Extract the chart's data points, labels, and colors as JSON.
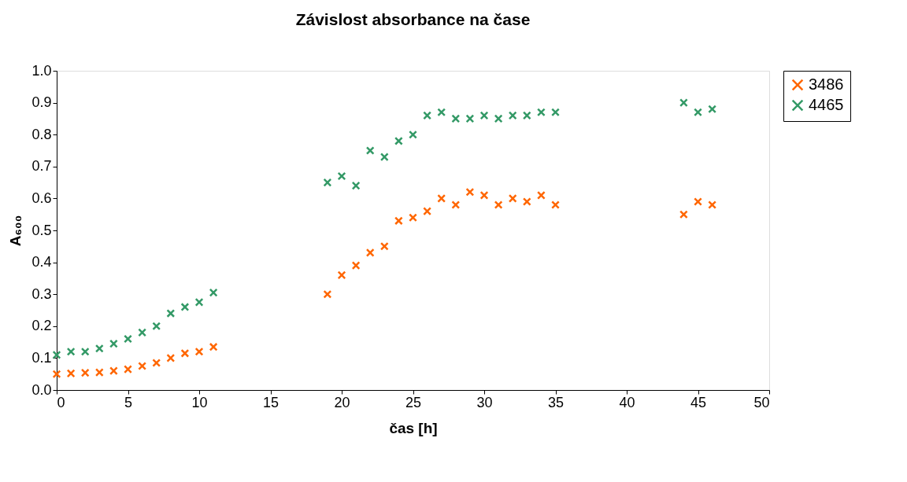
{
  "chart_data": {
    "type": "scatter",
    "title": "Závislost absorbance na čase",
    "xlabel": "čas [h]",
    "ylabel": "A₆₀₀",
    "x": [
      0,
      1,
      2,
      3,
      4,
      5,
      6,
      7,
      8,
      9,
      10,
      11,
      19,
      20,
      21,
      22,
      23,
      24,
      25,
      26,
      27,
      28,
      29,
      30,
      31,
      32,
      33,
      34,
      35,
      44,
      45,
      46
    ],
    "series": [
      {
        "name": "3486",
        "color": "#ff6600",
        "values": [
          0.05,
          0.052,
          0.054,
          0.055,
          0.06,
          0.065,
          0.075,
          0.085,
          0.1,
          0.115,
          0.12,
          0.135,
          0.3,
          0.36,
          0.39,
          0.43,
          0.45,
          0.53,
          0.54,
          0.56,
          0.6,
          0.58,
          0.62,
          0.61,
          0.58,
          0.6,
          0.59,
          0.61,
          0.58,
          0.55,
          0.59,
          0.58
        ]
      },
      {
        "name": "4465",
        "color": "#339966",
        "values": [
          0.11,
          0.12,
          0.12,
          0.13,
          0.145,
          0.16,
          0.18,
          0.2,
          0.24,
          0.26,
          0.275,
          0.305,
          0.65,
          0.67,
          0.64,
          0.75,
          0.73,
          0.78,
          0.8,
          0.86,
          0.87,
          0.85,
          0.85,
          0.86,
          0.85,
          0.86,
          0.86,
          0.87,
          0.87,
          0.9,
          0.87,
          0.88
        ]
      }
    ],
    "xlim": [
      0,
      50
    ],
    "xticks": [
      0,
      5,
      10,
      15,
      20,
      25,
      30,
      35,
      40,
      45,
      50
    ],
    "ylim": [
      0,
      1
    ],
    "yticks": [
      {
        "value": 0,
        "label": "0.0"
      },
      {
        "value": 0.1,
        "label": "0.1"
      },
      {
        "value": 0.2,
        "label": "0.2"
      },
      {
        "value": 0.3,
        "label": "0.3"
      },
      {
        "value": 0.4,
        "label": "0.4"
      },
      {
        "value": 0.5,
        "label": "0.5"
      },
      {
        "value": 0.6,
        "label": "0.6"
      },
      {
        "value": 0.7,
        "label": "0.7"
      },
      {
        "value": 0.8,
        "label": "0.8"
      },
      {
        "value": 0.9,
        "label": "0.9"
      },
      {
        "value": 1,
        "label": "1.0"
      }
    ],
    "grid": false,
    "legend": "right",
    "marker": "cross"
  }
}
